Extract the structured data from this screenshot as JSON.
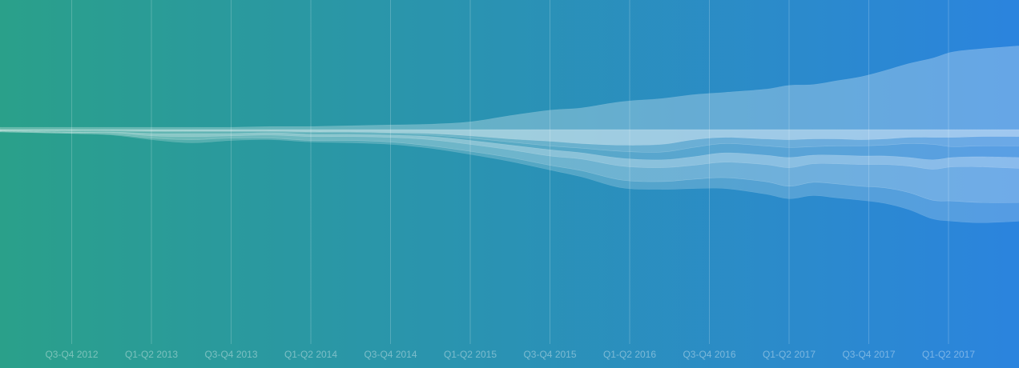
{
  "colors": {
    "bg_left": "#2aa08a",
    "bg_right": "#2b84de",
    "stream_fill": "#ffffff"
  },
  "chart_data": {
    "type": "area",
    "subtype": "streamgraph",
    "title": "",
    "xlabel": "",
    "ylabel": "",
    "grid": "vertical lines",
    "legend": "none",
    "ticks": [
      {
        "label": "Q3-Q4 2012",
        "x": 1
      },
      {
        "label": "Q1-Q2 2013",
        "x": 2
      },
      {
        "label": "Q3-Q4 2013",
        "x": 3
      },
      {
        "label": "Q1-Q2 2014",
        "x": 4
      },
      {
        "label": "Q3-Q4 2014",
        "x": 5
      },
      {
        "label": "Q1-Q2 2015",
        "x": 6
      },
      {
        "label": "Q3-Q4 2015",
        "x": 7
      },
      {
        "label": "Q1-Q2 2016",
        "x": 8
      },
      {
        "label": "Q3-Q4 2016",
        "x": 9
      },
      {
        "label": "Q1-Q2 2017",
        "x": 10
      },
      {
        "label": "Q3-Q4 2017",
        "x": 11
      },
      {
        "label": "Q1-Q2 2017",
        "x": 12
      }
    ],
    "x": [
      0.1,
      1,
      1.5,
      2,
      2.5,
      3,
      3.5,
      4,
      4.5,
      5,
      5.5,
      6,
      6.5,
      7,
      7.4,
      7.9,
      8.4,
      8.8,
      9.2,
      9.7,
      10,
      10.3,
      10.6,
      10.9,
      11.2,
      11.5,
      11.8,
      12.05,
      12.4,
      12.9
    ],
    "centerline": [
      0,
      0,
      0,
      0,
      0,
      0,
      0,
      0,
      0,
      0,
      0,
      0,
      0,
      0,
      0,
      0,
      0,
      0,
      0,
      0,
      0,
      0,
      0,
      0,
      0,
      0,
      0,
      0,
      0,
      0
    ],
    "series": [
      {
        "values": [
          3,
          3,
          3,
          3,
          3,
          3,
          4,
          4,
          5,
          6,
          7,
          10,
          18,
          25,
          28,
          36,
          40,
          45,
          48,
          52,
          57,
          58,
          63,
          68,
          76,
          85,
          92,
          100,
          104,
          108
        ]
      },
      {
        "values": [
          1,
          1,
          1,
          2,
          2,
          2,
          2,
          3,
          3,
          4,
          5,
          8,
          12,
          15,
          18,
          20,
          19,
          13,
          10,
          12,
          13,
          12,
          12,
          13,
          12,
          10,
          10,
          10,
          9,
          9
        ]
      },
      {
        "values": [
          0,
          1,
          1,
          1,
          1,
          1,
          1,
          1,
          1,
          1,
          2,
          3,
          4,
          6,
          6,
          8,
          10,
          10,
          8,
          9,
          10,
          10,
          9,
          8,
          8,
          8,
          9,
          12,
          12,
          12
        ]
      },
      {
        "values": [
          0,
          1,
          1,
          2,
          2,
          2,
          1,
          2,
          2,
          2,
          2,
          3,
          4,
          5,
          6,
          9,
          10,
          12,
          12,
          12,
          13,
          11,
          12,
          13,
          14,
          18,
          20,
          14,
          14,
          15
        ]
      },
      {
        "values": [
          1,
          1,
          1,
          3,
          4,
          3,
          3,
          3,
          3,
          3,
          4,
          5,
          6,
          8,
          8,
          10,
          10,
          11,
          12,
          12,
          13,
          11,
          11,
          11,
          11,
          11,
          12,
          12,
          13,
          14
        ]
      },
      {
        "values": [
          1,
          1,
          2,
          3,
          4,
          3,
          4,
          5,
          5,
          6,
          8,
          9,
          10,
          12,
          15,
          18,
          18,
          18,
          20,
          22,
          24,
          24,
          26,
          28,
          30,
          34,
          40,
          44,
          46,
          44
        ]
      },
      {
        "values": [
          0,
          0,
          1,
          2,
          4,
          3,
          2,
          2,
          3,
          3,
          3,
          4,
          5,
          6,
          8,
          10,
          10,
          12,
          14,
          16,
          16,
          17,
          18,
          18,
          20,
          22,
          24,
          26,
          26,
          24
        ]
      }
    ]
  }
}
